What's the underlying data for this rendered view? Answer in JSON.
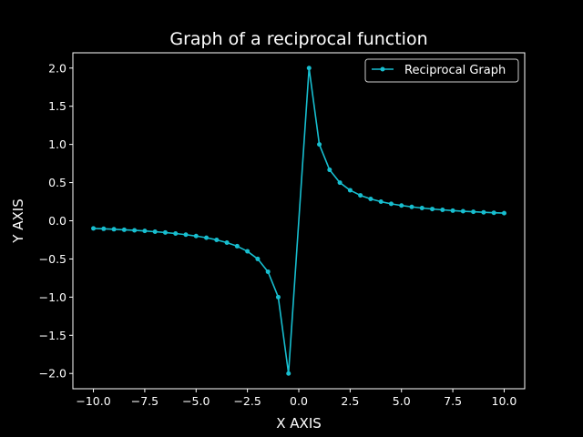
{
  "chart_data": {
    "type": "line",
    "title": "Graph of a reciprocal function",
    "xlabel": "X AXIS",
    "ylabel": "Y AXIS",
    "xlim": [
      -11.0,
      11.0
    ],
    "ylim": [
      -2.2,
      2.2
    ],
    "grid": false,
    "legend_position": "top-right",
    "x_ticks": [
      -10.0,
      -7.5,
      -5.0,
      -2.5,
      0.0,
      2.5,
      5.0,
      7.5,
      10.0
    ],
    "x_tick_labels": [
      "−10.0",
      "−7.5",
      "−5.0",
      "−2.5",
      "0.0",
      "2.5",
      "5.0",
      "7.5",
      "10.0"
    ],
    "y_ticks": [
      -2.0,
      -1.5,
      -1.0,
      -0.5,
      0.0,
      0.5,
      1.0,
      1.5,
      2.0
    ],
    "y_tick_labels": [
      "−2.0",
      "−1.5",
      "−1.0",
      "−0.5",
      "0.0",
      "0.5",
      "1.0",
      "1.5",
      "2.0"
    ],
    "colors": {
      "background": "#000000",
      "series": "#17becf",
      "axes": "#ffffff"
    },
    "series": [
      {
        "name": "Reciprocal Graph",
        "x": [
          -10.0,
          -9.5,
          -9.0,
          -8.5,
          -8.0,
          -7.5,
          -7.0,
          -6.5,
          -6.0,
          -5.5,
          -5.0,
          -4.5,
          -4.0,
          -3.5,
          -3.0,
          -2.5,
          -2.0,
          -1.5,
          -1.0,
          -0.5,
          0.5,
          1.0,
          1.5,
          2.0,
          2.5,
          3.0,
          3.5,
          4.0,
          4.5,
          5.0,
          5.5,
          6.0,
          6.5,
          7.0,
          7.5,
          8.0,
          8.5,
          9.0,
          9.5,
          10.0
        ],
        "y": [
          -0.1,
          -0.105,
          -0.111,
          -0.118,
          -0.125,
          -0.133,
          -0.143,
          -0.154,
          -0.167,
          -0.182,
          -0.2,
          -0.222,
          -0.25,
          -0.286,
          -0.333,
          -0.4,
          -0.5,
          -0.667,
          -1.0,
          -2.0,
          2.0,
          1.0,
          0.667,
          0.5,
          0.4,
          0.333,
          0.286,
          0.25,
          0.222,
          0.2,
          0.182,
          0.167,
          0.154,
          0.143,
          0.133,
          0.125,
          0.118,
          0.111,
          0.105,
          0.1
        ]
      }
    ]
  }
}
